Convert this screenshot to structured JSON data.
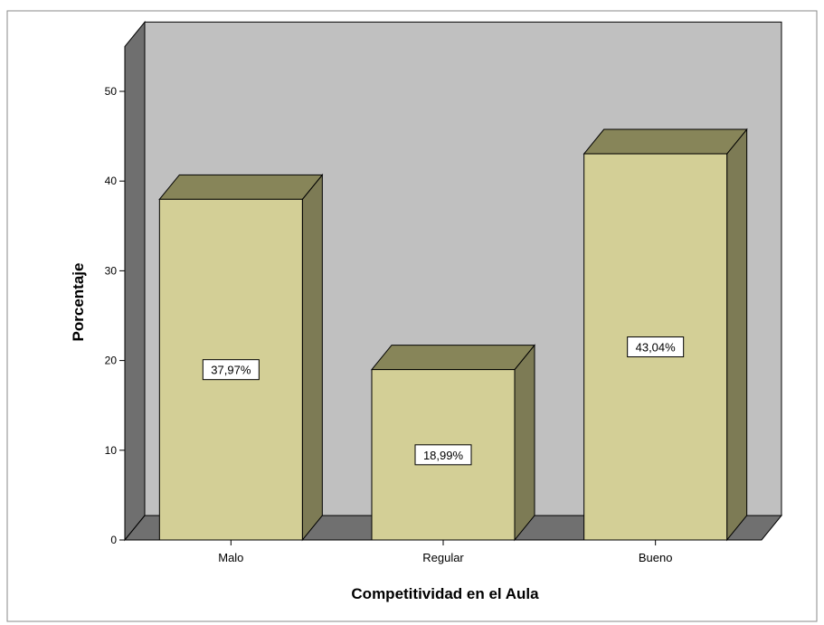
{
  "chart_data": {
    "type": "bar",
    "title": "",
    "xlabel": "Competitividad en el Aula",
    "ylabel": "Porcentaje",
    "categories": [
      "Malo",
      "Regular",
      "Bueno"
    ],
    "values": [
      37.97,
      18.99,
      43.04
    ],
    "value_labels": [
      "37,97%",
      "18,99%",
      "43,04%"
    ],
    "ylim": [
      0,
      55
    ],
    "yticks": [
      0,
      10,
      20,
      30,
      40,
      50
    ],
    "ytick_labels": [
      "0",
      "10",
      "20",
      "30",
      "40",
      "50"
    ],
    "style": "3d",
    "grid": false,
    "legend": "none",
    "colors": {
      "bar_front": "#d3cf96",
      "bar_top": "#878559",
      "bar_side": "#7d7b55",
      "back_wall": "#c0c0c0",
      "side_wall": "#6f6f6f",
      "floor": "#707070",
      "frame_border": "#888888",
      "axis": "#000000"
    }
  }
}
